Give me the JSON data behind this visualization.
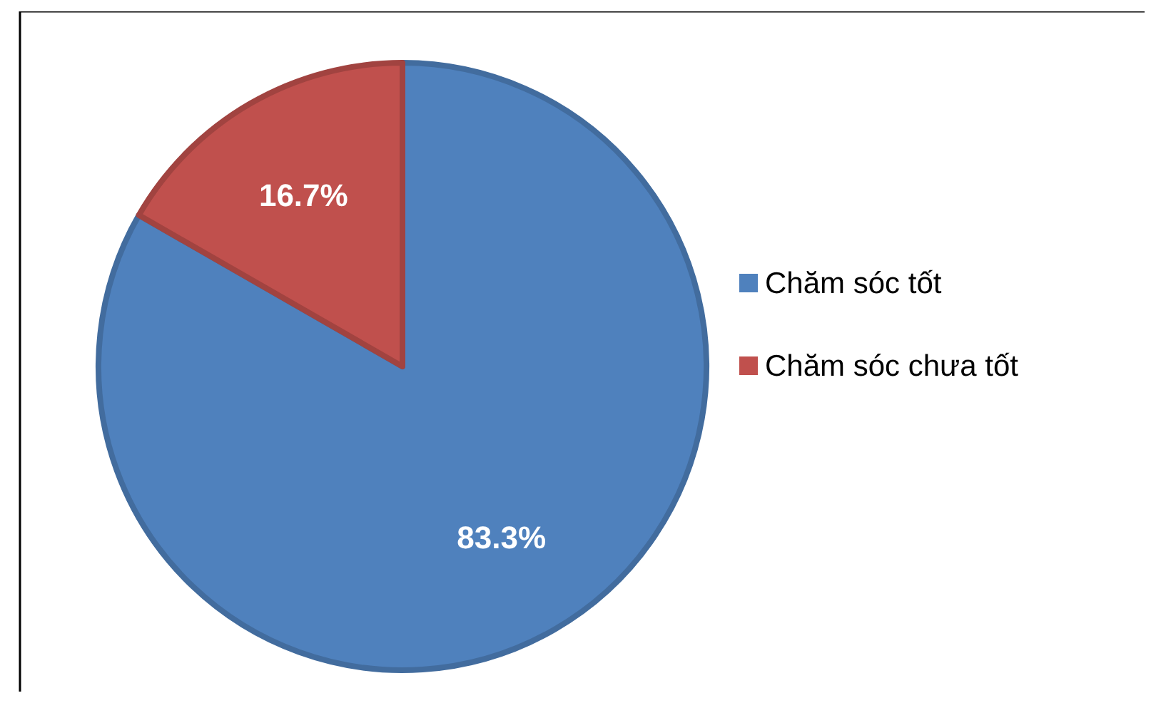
{
  "chart_data": {
    "type": "pie",
    "categories": [
      "Chăm sóc tốt",
      "Chăm sóc chưa tốt"
    ],
    "values": [
      83.3,
      16.7
    ],
    "colors": [
      "#4f81bd",
      "#c0504d"
    ],
    "value_labels": [
      "83.3%",
      "16.7%"
    ],
    "legend": "right"
  }
}
